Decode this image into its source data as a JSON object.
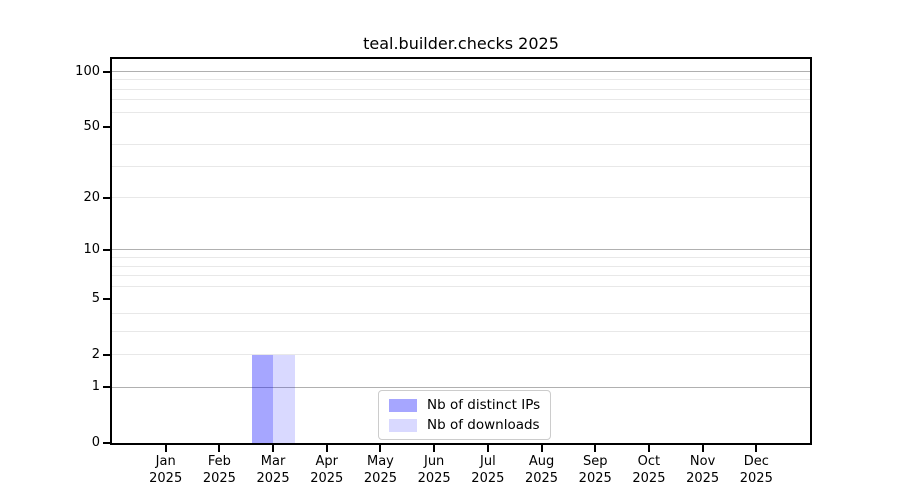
{
  "chart_data": {
    "type": "bar",
    "title": "teal.builder.checks 2025",
    "categories": [
      "Jan",
      "Feb",
      "Mar",
      "Apr",
      "May",
      "Jun",
      "Jul",
      "Aug",
      "Sep",
      "Oct",
      "Nov",
      "Dec"
    ],
    "x_tick_year": "2025",
    "series": [
      {
        "name": "Nb of distinct IPs",
        "color": "rgba(0,0,255,0.35)",
        "values": [
          0,
          0,
          2,
          0,
          0,
          0,
          0,
          0,
          0,
          0,
          0,
          0
        ]
      },
      {
        "name": "Nb of downloads",
        "color": "rgba(0,0,255,0.15)",
        "values": [
          0,
          0,
          2,
          0,
          0,
          0,
          0,
          0,
          0,
          0,
          0,
          0
        ]
      }
    ],
    "y_scale": "log1p",
    "ylim": [
      0,
      117
    ],
    "y_ticks": [
      {
        "value": 100,
        "label": "100"
      },
      {
        "value": 50,
        "label": "50"
      },
      {
        "value": 20,
        "label": "20"
      },
      {
        "value": 10,
        "label": "10"
      },
      {
        "value": 5,
        "label": "5"
      },
      {
        "value": 2,
        "label": "2"
      },
      {
        "value": 1,
        "label": "1"
      },
      {
        "value": 0,
        "label": "0"
      }
    ],
    "y_major_grid": [
      1,
      10,
      100
    ],
    "y_minor_grid": [
      2,
      3,
      4,
      6,
      7,
      8,
      9,
      20,
      30,
      40,
      60,
      70,
      80,
      90
    ],
    "grid": true,
    "legend_position": "lower center",
    "colors": {
      "major_grid": "#b0b0b0",
      "minor_grid": "#e8e8e8",
      "spine": "#000000",
      "text": "#000000",
      "background": "#ffffff"
    }
  }
}
